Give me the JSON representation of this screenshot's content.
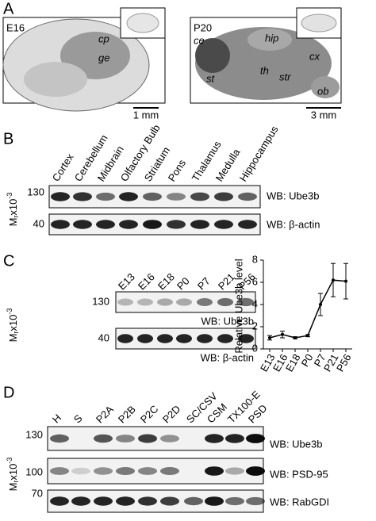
{
  "panels": {
    "a": {
      "label": "A",
      "left": {
        "stage": "E16",
        "regions": [
          "cp",
          "ge"
        ],
        "scale": "1 mm"
      },
      "right": {
        "stage": "P20",
        "regions": [
          "ce",
          "hip",
          "cx",
          "th",
          "str",
          "st",
          "ob"
        ],
        "scale": "3 mm"
      }
    },
    "b": {
      "label": "B",
      "lanes": [
        "Cortex",
        "Cerebellum",
        "Midbrain",
        "Olfactory Bulb",
        "Striatum",
        "Pons",
        "Thalamus",
        "Medulla",
        "Hippocampus"
      ],
      "markers": [
        130,
        40
      ],
      "mr": {
        "main": "M",
        "sub": "r",
        "mid": "x10",
        "sup": "-3"
      },
      "blots": [
        "WB: Ube3b",
        "WB: β-actin"
      ]
    },
    "c": {
      "label": "C",
      "lanes": [
        "E13",
        "E16",
        "E18",
        "P0",
        "P7",
        "P21",
        "P56"
      ],
      "markers": [
        130,
        40
      ],
      "mr": {
        "main": "M",
        "sub": "r",
        "mid": "x10",
        "sup": "-3"
      },
      "blots": [
        "WB: Ube3b",
        "WB: β-actin"
      ],
      "chart_data": {
        "type": "line",
        "y_label": "Relative Ube3b level",
        "categories": [
          "E13",
          "E16",
          "E18",
          "P0",
          "P7",
          "P21",
          "P56"
        ],
        "values": [
          1.0,
          1.3,
          1.0,
          1.2,
          4.0,
          6.2,
          6.1
        ],
        "errors": [
          0.2,
          0.3,
          0.1,
          0.1,
          1.0,
          1.5,
          1.6
        ],
        "color": "#000000",
        "ylim": [
          0,
          8
        ],
        "yticks": [
          0,
          2,
          4,
          6,
          8
        ]
      }
    },
    "d": {
      "label": "D",
      "lanes": [
        "H",
        "S",
        "P2A",
        "P2B",
        "P2C",
        "P2D",
        "SC/CSV",
        "CSM",
        "TX100-E",
        "PSD"
      ],
      "markers": [
        130,
        100,
        70
      ],
      "mr": {
        "main": "M",
        "sub": "r",
        "mid": "x10",
        "sup": "-3"
      },
      "blots": [
        "WB: Ube3b",
        "WB: PSD-95",
        "WB: RabGDI"
      ]
    }
  }
}
